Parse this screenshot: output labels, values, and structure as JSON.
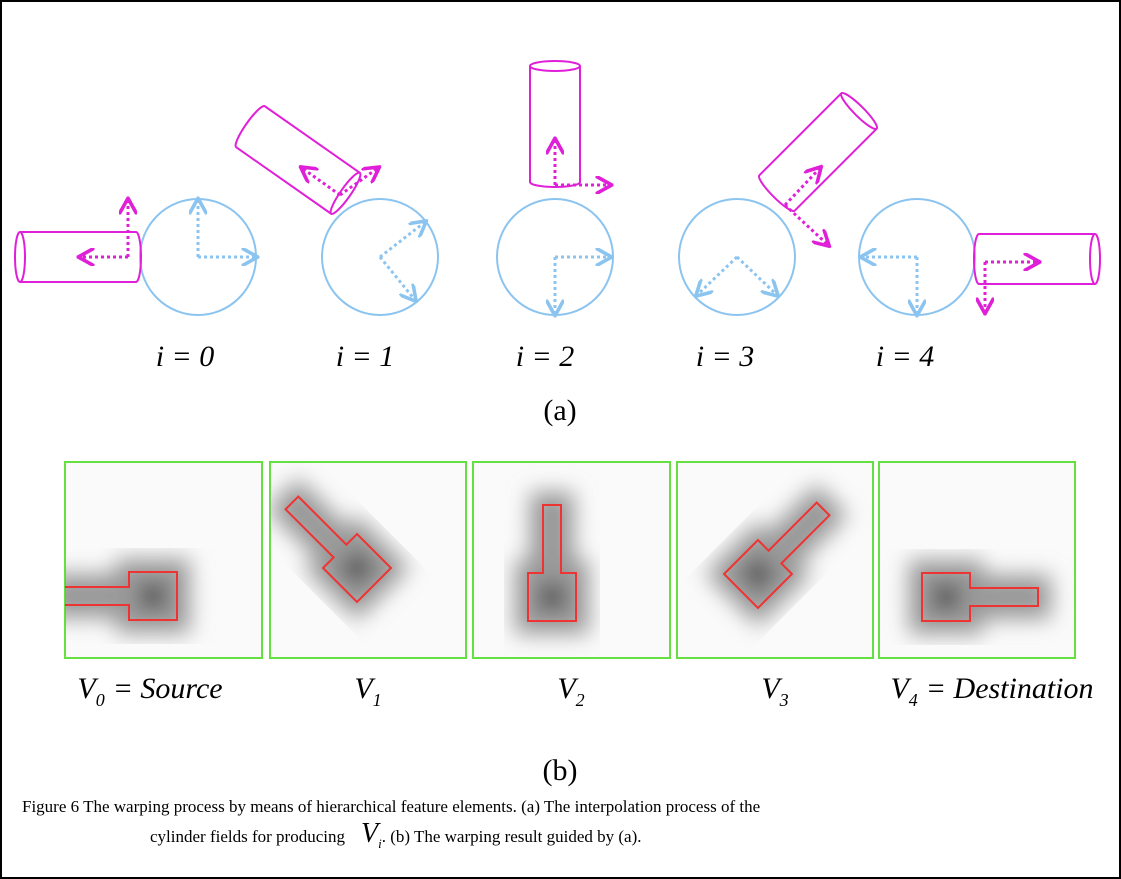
{
  "panel_a": {
    "labels": [
      "i = 0",
      "i = 1",
      "i = 2",
      "i = 3",
      "i = 4"
    ],
    "caption": "(a)"
  },
  "panel_b": {
    "labels": [
      {
        "symbol": "V",
        "subscript": "0",
        "suffix": "= Source"
      },
      {
        "symbol": "V",
        "subscript": "1"
      },
      {
        "symbol": "V",
        "subscript": "2"
      },
      {
        "symbol": "V",
        "subscript": "3"
      },
      {
        "symbol": "V",
        "subscript": "4",
        "suffix": "= Destination"
      }
    ],
    "caption": "(b)"
  },
  "figure_caption": {
    "line1": "Figure 6 The warping process by means of hierarchical feature elements. (a) The interpolation process of the",
    "line2_start": "cylinder fields for producing",
    "symbol": "V",
    "subscript": "i",
    "line2_end": ". (b) The warping result guided by (a)."
  }
}
